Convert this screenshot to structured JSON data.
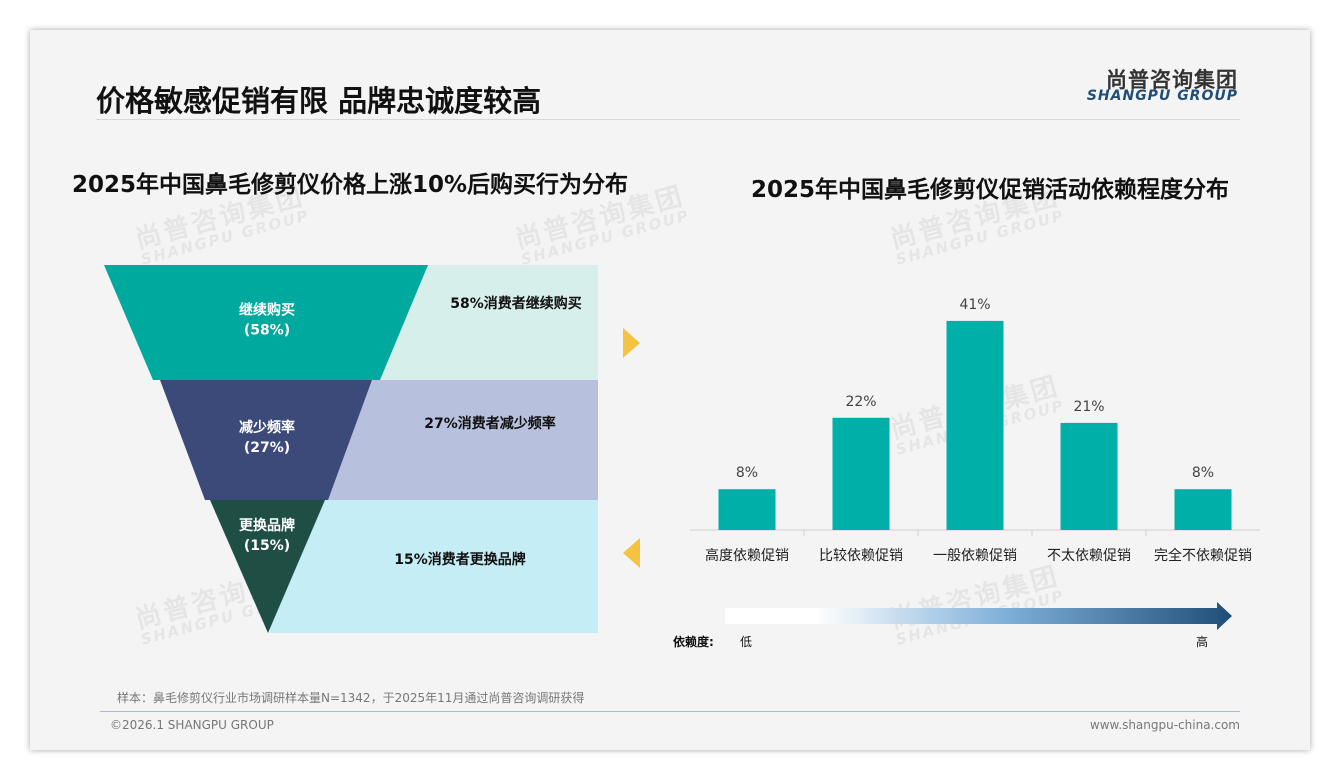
{
  "header": {
    "title": "价格敏感促销有限 品牌忠诚度较高",
    "logo_cn": "尚普咨询集团",
    "logo_en": "SHANGPU GROUP"
  },
  "watermark": {
    "cn": "尚普咨询集团",
    "en": "SHANGPU GROUP"
  },
  "chart_data": [
    {
      "type": "funnel",
      "title": "2025年中国鼻毛修剪仪价格上涨10%后购买行为分布",
      "stages": [
        {
          "label": "继续购买",
          "value": 58,
          "value_label": "(58%)",
          "note": "58%消费者继续购买",
          "color": "#00a99d",
          "band_color": "#d6efeb"
        },
        {
          "label": "减少频率",
          "value": 27,
          "value_label": "(27%)",
          "note": "27%消费者减少频率",
          "color": "#3c4a7a",
          "band_color": "#b7c0dd"
        },
        {
          "label": "更换品牌",
          "value": 15,
          "value_label": "(15%)",
          "note": "15%消费者更换品牌",
          "color": "#1e4e44",
          "band_color": "#c5edf5"
        }
      ]
    },
    {
      "type": "bar",
      "title": "2025年中国鼻毛修剪仪促销活动依赖程度分布",
      "categories": [
        "高度依赖促销",
        "比较依赖促销",
        "一般依赖促销",
        "不太依赖促销",
        "完全不依赖促销"
      ],
      "values": [
        8,
        22,
        41,
        21,
        8
      ],
      "labels": [
        "8%",
        "22%",
        "41%",
        "21%",
        "8%"
      ],
      "unit": "%",
      "ylim": [
        0,
        45
      ],
      "color": "#00b0a8",
      "grid": false,
      "legend": {
        "label": "依赖度:",
        "low": "低",
        "high": "高"
      }
    }
  ],
  "footer": {
    "note": "样本：鼻毛修剪仪行业市场调研样本量N=1342，于2025年11月通过尚普咨询调研获得",
    "copyright": "©2026.1 SHANGPU GROUP",
    "website": "www.shangpu-china.com"
  },
  "colors": {
    "accent_arrow": "#f5c342",
    "gradient_end": "#1f4e79"
  }
}
